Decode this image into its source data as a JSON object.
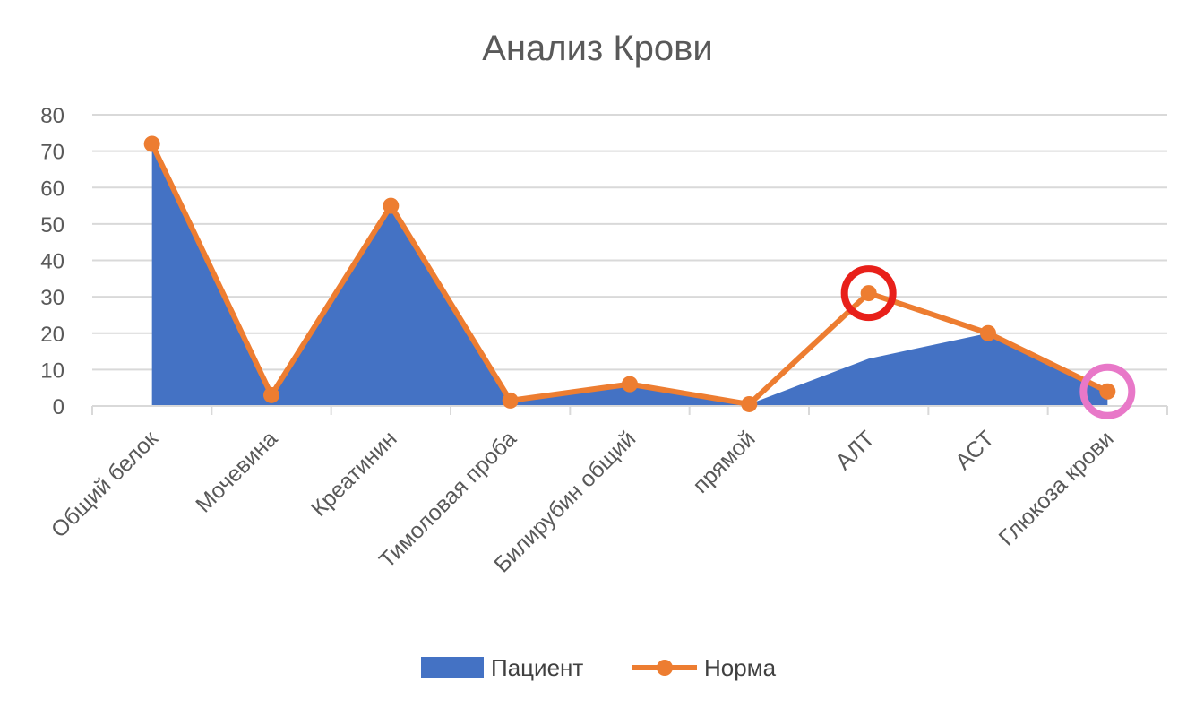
{
  "chart_data": {
    "type": "area",
    "title": "Анализ Крови",
    "xlabel": "",
    "ylabel": "",
    "ylim": [
      0,
      80
    ],
    "yticks": [
      0,
      10,
      20,
      30,
      40,
      50,
      60,
      70,
      80
    ],
    "grid": true,
    "legend_position": "bottom",
    "categories": [
      "Общий белок",
      "Мочевина",
      "Креатинин",
      "Тимоловая проба",
      "Билирубин общий",
      "прямой",
      "АЛТ",
      "АСТ",
      "Глюкоза крови"
    ],
    "series": [
      {
        "name": "Пациент",
        "kind": "area",
        "color": "#4472c4",
        "values": [
          72,
          3,
          55,
          1.5,
          6,
          0.5,
          13,
          20,
          4
        ]
      },
      {
        "name": "Норма",
        "kind": "line-markers",
        "color": "#ed7d31",
        "values": [
          72,
          3,
          55,
          1.5,
          6,
          0.5,
          31,
          20,
          4
        ]
      }
    ],
    "annotations": [
      {
        "category": "АЛТ",
        "value": 31,
        "shape": "circle",
        "color": "#e8201a"
      },
      {
        "category": "Глюкоза крови",
        "value": 4,
        "shape": "circle",
        "color": "#e878c8"
      }
    ]
  }
}
